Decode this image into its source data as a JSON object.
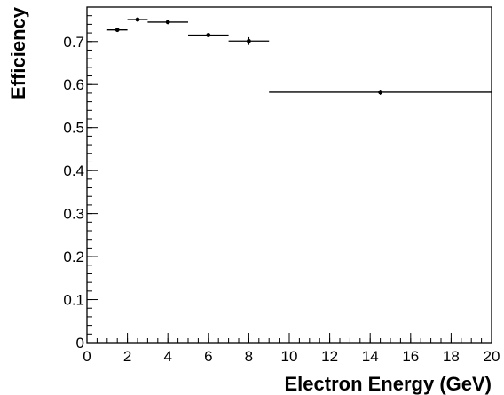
{
  "chart_data": {
    "type": "scatter",
    "xlabel": "Electron Energy (GeV)",
    "ylabel": "Efficiency",
    "xlim": [
      0,
      20
    ],
    "ylim": [
      0,
      0.78
    ],
    "x_ticks": [
      0,
      2,
      4,
      6,
      8,
      10,
      12,
      14,
      16,
      18,
      20
    ],
    "y_ticks": [
      0,
      0.1,
      0.2,
      0.3,
      0.4,
      0.5,
      0.6,
      0.7
    ],
    "x_minor_step": 0.5,
    "y_minor_step": 0.02,
    "grid": false,
    "legend": "none",
    "color": "#000000",
    "points": [
      {
        "x": 1.5,
        "x_low": 1,
        "x_high": 2,
        "y": 0.727,
        "y_err": 0.003
      },
      {
        "x": 2.5,
        "x_low": 2,
        "x_high": 3,
        "y": 0.751,
        "y_err": 0.003
      },
      {
        "x": 4,
        "x_low": 3,
        "x_high": 5,
        "y": 0.745,
        "y_err": 0.003
      },
      {
        "x": 6,
        "x_low": 5,
        "x_high": 7,
        "y": 0.715,
        "y_err": 0.004
      },
      {
        "x": 8,
        "x_low": 7,
        "x_high": 9,
        "y": 0.701,
        "y_err": 0.009
      },
      {
        "x": 14.5,
        "x_low": 9,
        "x_high": 20,
        "y": 0.582,
        "y_err": 0.006
      }
    ]
  }
}
